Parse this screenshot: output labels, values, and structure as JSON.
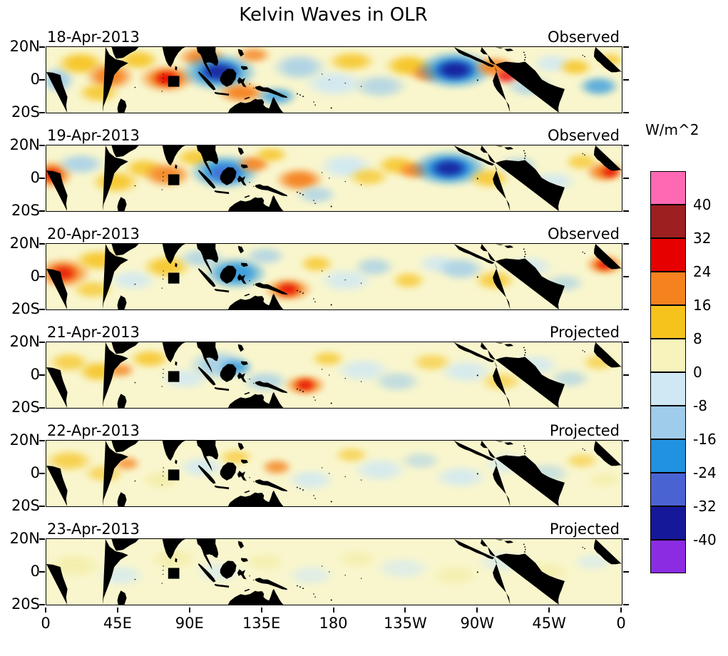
{
  "title": "Kelvin Waves in OLR",
  "units_label": "W/m^2",
  "axes": {
    "x_labels": [
      "0",
      "45E",
      "90E",
      "135E",
      "180",
      "135W",
      "90W",
      "45W",
      "0"
    ],
    "y_labels": [
      "20N",
      "0",
      "20S"
    ]
  },
  "colorbar": {
    "levels": [
      "40",
      "32",
      "24",
      "16",
      "8",
      "0",
      "-8",
      "-16",
      "-24",
      "-32",
      "-40"
    ],
    "colors": [
      "#FF69B4",
      "#9E1F1F",
      "#E60000",
      "#F5821F",
      "#F6C21C",
      "#F8F3BC",
      "#CFE8F4",
      "#9FCCEA",
      "#2092E0",
      "#4A63D3",
      "#151899",
      "#8B2BE2"
    ]
  },
  "palette": {
    "Y": "#F6C21C",
    "O": "#F5821F",
    "R": "#E60000",
    "DR": "#9E1F1F",
    "PY": "#F3EDA6",
    "LB1": "#CFE8F4",
    "LB2": "#9FCCEA",
    "B": "#2092E0",
    "DB": "#4A63D3",
    "N": "#151899",
    "P": "#8B2BE2",
    "base": "#F9F6CD",
    "coast_green": "#1F8A3D",
    "dash_green": "#4BA06B"
  },
  "chart_data": {
    "type": "heatmap",
    "title": "Kelvin Waves in OLR",
    "units": "W/m^2",
    "x_range_deg": [
      0,
      360
    ],
    "y_range_deg": [
      -20,
      20
    ],
    "levels": [
      -40,
      -32,
      -24,
      -16,
      -8,
      0,
      8,
      16,
      24,
      32,
      40
    ],
    "panels": [
      {
        "date": "18-Apr-2013",
        "source": "Observed",
        "features": [
          [
            2,
            50,
            50,
            40,
            "LB2",
            0.9
          ],
          [
            6,
            25,
            70,
            35,
            "Y",
            0.9
          ],
          [
            11,
            45,
            70,
            40,
            "O",
            0.95
          ],
          [
            9,
            70,
            60,
            30,
            "Y",
            0.8
          ],
          [
            16,
            20,
            60,
            30,
            "Y",
            0.85
          ],
          [
            21,
            48,
            80,
            40,
            "O",
            1
          ],
          [
            21,
            48,
            40,
            22,
            "R",
            0.9
          ],
          [
            27,
            15,
            70,
            30,
            "O",
            0.9
          ],
          [
            30,
            38,
            110,
            55,
            "B",
            0.9
          ],
          [
            30,
            38,
            60,
            30,
            "N",
            0.85
          ],
          [
            34,
            70,
            70,
            30,
            "O",
            0.95
          ],
          [
            36,
            12,
            50,
            24,
            "O",
            0.8
          ],
          [
            40,
            75,
            60,
            28,
            "B",
            0.7
          ],
          [
            44,
            30,
            80,
            40,
            "LB2",
            0.8
          ],
          [
            50,
            55,
            90,
            40,
            "LB1",
            0.9
          ],
          [
            53,
            22,
            70,
            30,
            "Y",
            0.8
          ],
          [
            58,
            60,
            80,
            36,
            "LB2",
            0.7
          ],
          [
            63,
            28,
            70,
            34,
            "Y",
            0.9
          ],
          [
            66,
            40,
            50,
            26,
            "O",
            0.85
          ],
          [
            71,
            35,
            110,
            55,
            "B",
            0.95
          ],
          [
            71,
            35,
            60,
            30,
            "N",
            0.9
          ],
          [
            78,
            30,
            60,
            30,
            "O",
            0.95
          ],
          [
            80,
            45,
            40,
            22,
            "R",
            0.8
          ],
          [
            84,
            60,
            70,
            32,
            "LB2",
            0.7
          ],
          [
            88,
            25,
            60,
            30,
            "LB1",
            0.8
          ],
          [
            92,
            30,
            50,
            26,
            "Y",
            0.8
          ],
          [
            96,
            60,
            60,
            30,
            "B",
            0.7
          ],
          [
            98,
            20,
            40,
            22,
            "Y",
            0.7
          ]
        ]
      },
      {
        "date": "19-Apr-2013",
        "source": "Observed",
        "features": [
          [
            1,
            45,
            60,
            40,
            "O",
            1
          ],
          [
            1,
            45,
            30,
            20,
            "R",
            0.8
          ],
          [
            6,
            28,
            70,
            32,
            "LB2",
            0.8
          ],
          [
            12,
            55,
            70,
            34,
            "Y",
            0.85
          ],
          [
            17,
            35,
            60,
            30,
            "Y",
            0.8
          ],
          [
            21,
            45,
            70,
            36,
            "O",
            0.9
          ],
          [
            26,
            18,
            60,
            28,
            "Y",
            0.8
          ],
          [
            31,
            40,
            100,
            50,
            "B",
            0.9
          ],
          [
            31,
            42,
            50,
            26,
            "DB",
            0.8
          ],
          [
            36,
            28,
            50,
            26,
            "O",
            0.9
          ],
          [
            39,
            14,
            50,
            24,
            "Y",
            0.8
          ],
          [
            44,
            52,
            70,
            34,
            "O",
            0.95
          ],
          [
            47,
            75,
            60,
            28,
            "LB2",
            0.7
          ],
          [
            52,
            32,
            80,
            38,
            "LB1",
            0.9
          ],
          [
            56,
            48,
            60,
            28,
            "Y",
            0.7
          ],
          [
            61,
            30,
            60,
            30,
            "Y",
            0.8
          ],
          [
            64,
            38,
            50,
            26,
            "O",
            0.9
          ],
          [
            70,
            35,
            110,
            52,
            "B",
            0.95
          ],
          [
            70,
            35,
            55,
            28,
            "N",
            0.85
          ],
          [
            77,
            50,
            60,
            30,
            "Y",
            0.8
          ],
          [
            82,
            30,
            60,
            28,
            "LB2",
            0.7
          ],
          [
            88,
            55,
            70,
            32,
            "LB1",
            0.8
          ],
          [
            93,
            25,
            50,
            26,
            "Y",
            0.7
          ],
          [
            97,
            40,
            55,
            30,
            "O",
            0.95
          ],
          [
            98,
            40,
            30,
            18,
            "R",
            0.8
          ]
        ]
      },
      {
        "date": "20-Apr-2013",
        "source": "Observed",
        "features": [
          [
            3,
            45,
            80,
            44,
            "O",
            0.95
          ],
          [
            3,
            45,
            40,
            24,
            "R",
            0.7
          ],
          [
            9,
            25,
            70,
            32,
            "Y",
            0.85
          ],
          [
            8,
            70,
            60,
            28,
            "Y",
            0.7
          ],
          [
            15,
            55,
            70,
            32,
            "LB1",
            0.8
          ],
          [
            21,
            35,
            70,
            34,
            "Y",
            0.85
          ],
          [
            27,
            22,
            70,
            30,
            "LB2",
            0.7
          ],
          [
            33,
            45,
            90,
            46,
            "B",
            0.85
          ],
          [
            38,
            18,
            60,
            28,
            "LB2",
            0.7
          ],
          [
            42,
            70,
            70,
            34,
            "O",
            0.95
          ],
          [
            42,
            70,
            36,
            20,
            "R",
            0.8
          ],
          [
            47,
            30,
            50,
            26,
            "Y",
            0.75
          ],
          [
            52,
            55,
            80,
            36,
            "LB1",
            0.8
          ],
          [
            57,
            35,
            60,
            30,
            "LB2",
            0.7
          ],
          [
            63,
            55,
            50,
            26,
            "Y",
            0.7
          ],
          [
            68,
            30,
            60,
            30,
            "LB1",
            0.8
          ],
          [
            72,
            38,
            70,
            34,
            "LB2",
            0.8
          ],
          [
            78,
            55,
            60,
            30,
            "Y",
            0.75
          ],
          [
            84,
            35,
            70,
            32,
            "LB1",
            0.8
          ],
          [
            90,
            60,
            60,
            28,
            "LB2",
            0.6
          ],
          [
            97,
            32,
            55,
            30,
            "O",
            0.95
          ],
          [
            97,
            32,
            28,
            16,
            "R",
            0.8
          ]
        ]
      },
      {
        "date": "21-Apr-2013",
        "source": "Projected",
        "features": [
          [
            4,
            30,
            60,
            30,
            "Y",
            0.7
          ],
          [
            9,
            45,
            60,
            32,
            "Y",
            0.85
          ],
          [
            13,
            42,
            40,
            22,
            "O",
            0.8
          ],
          [
            18,
            25,
            60,
            28,
            "Y",
            0.8
          ],
          [
            24,
            55,
            70,
            32,
            "LB1",
            0.8
          ],
          [
            30,
            35,
            90,
            44,
            "LB2",
            0.85
          ],
          [
            33,
            38,
            50,
            26,
            "B",
            0.7
          ],
          [
            38,
            60,
            70,
            32,
            "LB2",
            0.7
          ],
          [
            45,
            65,
            60,
            30,
            "O",
            0.95
          ],
          [
            45,
            65,
            30,
            18,
            "R",
            0.8
          ],
          [
            49,
            25,
            50,
            24,
            "Y",
            0.7
          ],
          [
            55,
            42,
            80,
            36,
            "LB1",
            0.8
          ],
          [
            61,
            60,
            70,
            32,
            "LB2",
            0.6
          ],
          [
            67,
            30,
            60,
            28,
            "Y",
            0.6
          ],
          [
            73,
            45,
            80,
            36,
            "LB1",
            0.8
          ],
          [
            79,
            60,
            60,
            28,
            "Y",
            0.6
          ],
          [
            85,
            35,
            70,
            32,
            "LB1",
            0.8
          ],
          [
            91,
            55,
            60,
            28,
            "LB2",
            0.6
          ],
          [
            96,
            30,
            50,
            26,
            "Y",
            0.6
          ]
        ]
      },
      {
        "date": "22-Apr-2013",
        "source": "Projected",
        "features": [
          [
            4,
            30,
            70,
            32,
            "Y",
            0.7
          ],
          [
            10,
            50,
            60,
            28,
            "Y",
            0.6
          ],
          [
            14,
            35,
            40,
            22,
            "O",
            0.75
          ],
          [
            20,
            60,
            60,
            28,
            "PY",
            0.8
          ],
          [
            27,
            40,
            70,
            32,
            "LB1",
            0.8
          ],
          [
            33,
            25,
            50,
            24,
            "Y",
            0.65
          ],
          [
            40,
            40,
            45,
            24,
            "O",
            0.8
          ],
          [
            46,
            60,
            70,
            32,
            "LB1",
            0.8
          ],
          [
            53,
            22,
            50,
            24,
            "Y",
            0.6
          ],
          [
            58,
            45,
            80,
            36,
            "LB1",
            0.8
          ],
          [
            65,
            30,
            60,
            28,
            "LB2",
            0.5
          ],
          [
            72,
            55,
            80,
            34,
            "LB1",
            0.8
          ],
          [
            80,
            35,
            70,
            32,
            "LB1",
            0.7
          ],
          [
            87,
            50,
            70,
            32,
            "LB2",
            0.5
          ],
          [
            93,
            30,
            50,
            24,
            "Y",
            0.55
          ],
          [
            97,
            60,
            50,
            26,
            "PY",
            0.7
          ]
        ]
      },
      {
        "date": "23-Apr-2013",
        "source": "Projected",
        "features": [
          [
            5,
            40,
            80,
            36,
            "PY",
            0.8
          ],
          [
            13,
            55,
            70,
            32,
            "LB1",
            0.7
          ],
          [
            22,
            30,
            70,
            32,
            "PY",
            0.8
          ],
          [
            30,
            50,
            70,
            32,
            "LB1",
            0.6
          ],
          [
            38,
            35,
            60,
            28,
            "PY",
            0.7
          ],
          [
            46,
            55,
            70,
            32,
            "LB1",
            0.6
          ],
          [
            54,
            30,
            60,
            28,
            "PY",
            0.7
          ],
          [
            62,
            45,
            80,
            34,
            "LB1",
            0.6
          ],
          [
            71,
            55,
            70,
            32,
            "PY",
            0.7
          ],
          [
            79,
            35,
            70,
            32,
            "LB1",
            0.6
          ],
          [
            87,
            50,
            70,
            32,
            "PY",
            0.7
          ],
          [
            95,
            35,
            60,
            28,
            "LB1",
            0.6
          ]
        ]
      }
    ]
  }
}
